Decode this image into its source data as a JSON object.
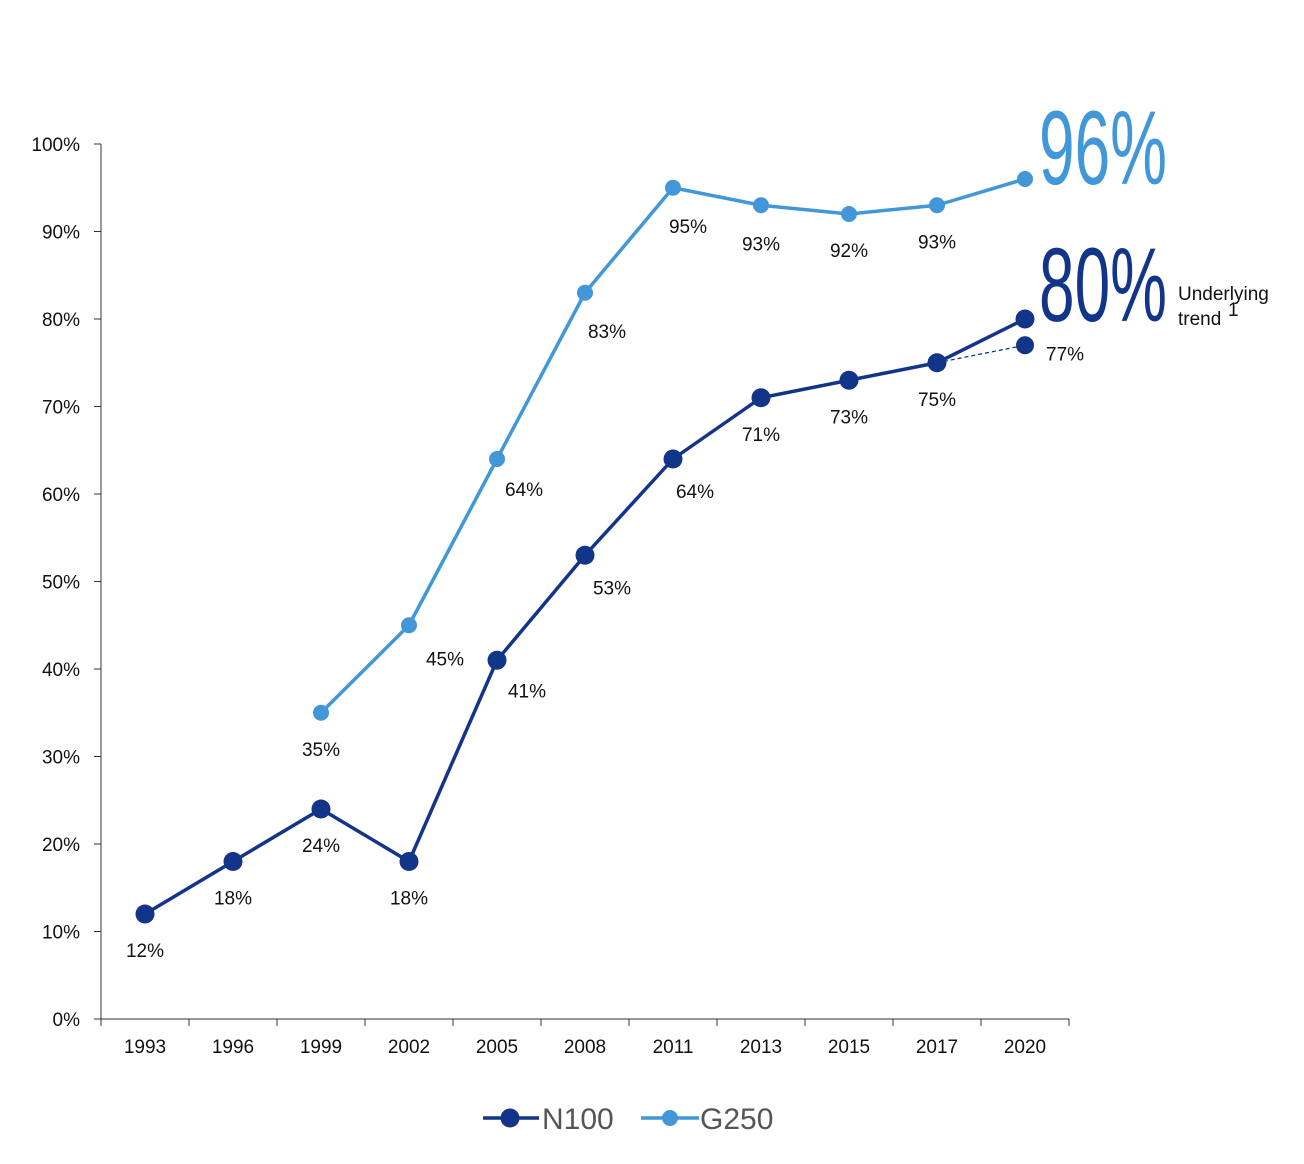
{
  "chart_data": {
    "type": "line",
    "categories": [
      "1993",
      "1996",
      "1999",
      "2002",
      "2005",
      "2008",
      "2011",
      "2013",
      "2015",
      "2017",
      "2020"
    ],
    "ylim": [
      0,
      100
    ],
    "yticks": [
      0,
      10,
      20,
      30,
      40,
      50,
      60,
      70,
      80,
      90,
      100
    ],
    "ytick_labels": [
      "0%",
      "10%",
      "20%",
      "30%",
      "40%",
      "50%",
      "60%",
      "70%",
      "80%",
      "90%",
      "100%"
    ],
    "grid": false,
    "legend_position": "bottom-center",
    "series": [
      {
        "name": "N100",
        "color": "#12358a",
        "values": [
          12,
          18,
          24,
          18,
          41,
          53,
          64,
          71,
          73,
          75,
          80
        ],
        "labels": [
          "12%",
          "18%",
          "24%",
          "18%",
          "41%",
          "53%",
          "64%",
          "71%",
          "73%",
          "75%",
          ""
        ]
      },
      {
        "name": "G250",
        "color": "#4197d8",
        "values": [
          null,
          null,
          35,
          45,
          64,
          83,
          95,
          93,
          92,
          93,
          96
        ],
        "labels": [
          "",
          "",
          "35%",
          "45%",
          "64%",
          "83%",
          "95%",
          "93%",
          "92%",
          "93%",
          ""
        ]
      }
    ],
    "underlying_trend": {
      "category": "2020",
      "value": 77,
      "label": "77%",
      "note_line1": "Underlying",
      "note_line2": "trend",
      "note_superscript": "1",
      "color": "#12358a"
    },
    "highlights": [
      {
        "series": "G250",
        "text": "96%",
        "color": "#4197d8"
      },
      {
        "series": "N100",
        "text": "80%",
        "color": "#12358a"
      }
    ]
  }
}
